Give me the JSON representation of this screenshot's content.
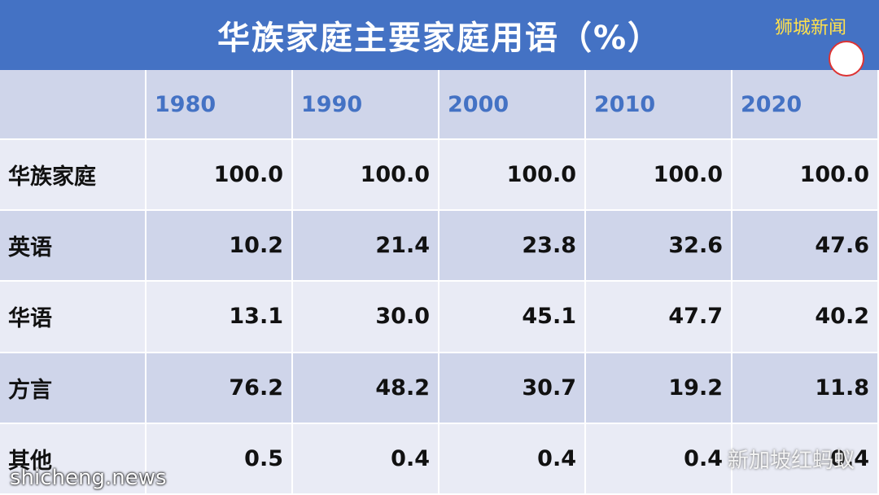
{
  "header": {
    "title": "华族家庭主要家庭用语（%）"
  },
  "table": {
    "columns": [
      "1980",
      "1990",
      "2000",
      "2010",
      "2020"
    ],
    "rows": [
      {
        "label": "华族家庭",
        "values": [
          "100.0",
          "100.0",
          "100.0",
          "100.0",
          "100.0"
        ]
      },
      {
        "label": "英语",
        "values": [
          "10.2",
          "21.4",
          "23.8",
          "32.6",
          "47.6"
        ]
      },
      {
        "label": "华语",
        "values": [
          "13.1",
          "30.0",
          "45.1",
          "47.7",
          "40.2"
        ]
      },
      {
        "label": "方言",
        "values": [
          "76.2",
          "48.2",
          "30.7",
          "19.2",
          "11.8"
        ]
      },
      {
        "label": "其他",
        "values": [
          "0.5",
          "0.4",
          "0.4",
          "0.4",
          "0.4"
        ]
      }
    ]
  },
  "watermarks": {
    "top_right": "狮城新闻",
    "bottom_right": "新加坡红蚂蚁",
    "bottom_left": "shicheng.news"
  }
}
